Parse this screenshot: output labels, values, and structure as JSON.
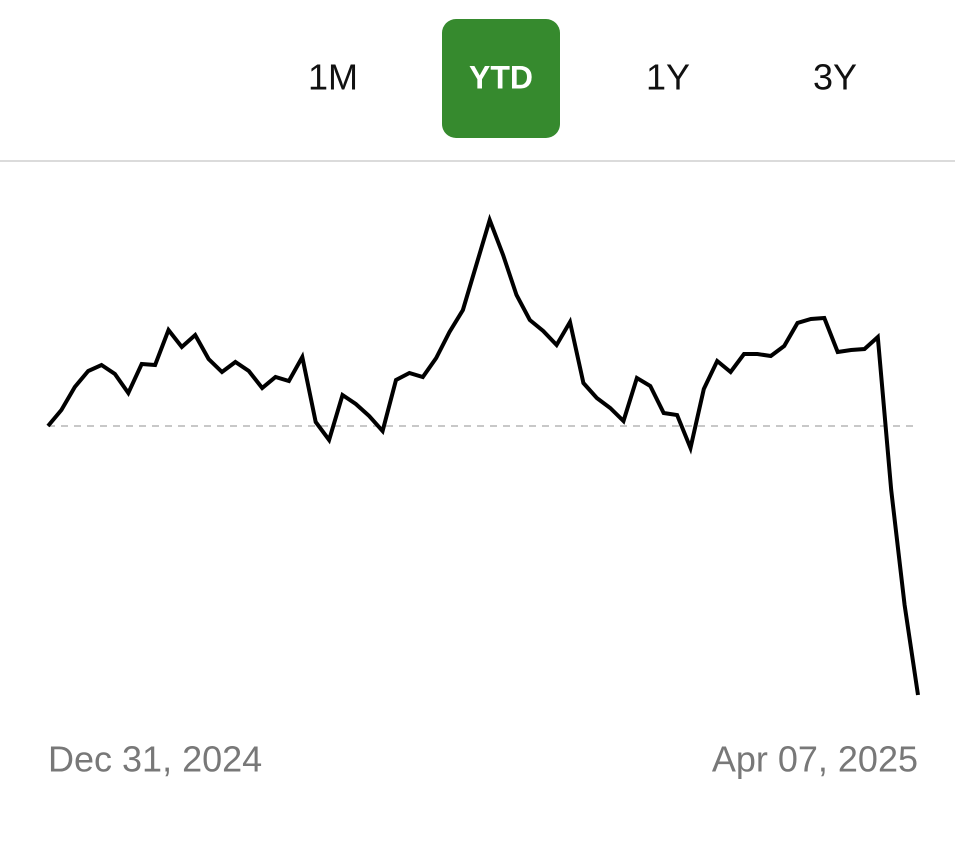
{
  "tabs": [
    "1M",
    "YTD",
    "1Y",
    "3Y"
  ],
  "selected_tab": 1,
  "selected_color": "#368a2e",
  "chart_data": {
    "type": "line",
    "categories": [
      "Dec 31, 2024",
      null,
      null,
      null,
      null,
      null,
      null,
      null,
      null,
      null,
      null,
      null,
      null,
      null,
      null,
      null,
      null,
      null,
      null,
      null,
      null,
      null,
      null,
      null,
      null,
      null,
      null,
      null,
      null,
      null,
      null,
      null,
      null,
      null,
      null,
      null,
      null,
      null,
      null,
      null,
      null,
      null,
      null,
      null,
      null,
      null,
      null,
      null,
      null,
      null,
      null,
      null,
      null,
      null,
      null,
      null,
      null,
      null,
      null,
      null,
      null,
      null,
      null,
      null,
      null,
      "Apr 07, 2025"
    ],
    "values": [
      0,
      1.6,
      3.9,
      5.5,
      6.1,
      5.2,
      3.3,
      6.2,
      6.1,
      9.6,
      7.9,
      9.1,
      6.7,
      5.4,
      6.4,
      5.5,
      3.8,
      4.9,
      4.5,
      6.9,
      0.4,
      -1.4,
      3.1,
      2.2,
      1.0,
      -0.5,
      4.6,
      5.3,
      4.9,
      6.8,
      9.4,
      11.6,
      16.1,
      20.6,
      17.1,
      13.1,
      10.6,
      9.5,
      8.1,
      10.4,
      4.3,
      2.8,
      1.8,
      0.5,
      4.8,
      4.0,
      1.3,
      1.1,
      -2.2,
      3.7,
      6.5,
      5.4,
      7.2,
      7.2,
      7.0,
      8.0,
      10.3,
      10.7,
      10.8,
      7.4,
      7.6,
      7.7,
      8.9,
      -6.4,
      -17.9,
      -26.9
    ],
    "color": "#000000",
    "ylim": [
      -30,
      25
    ]
  }
}
